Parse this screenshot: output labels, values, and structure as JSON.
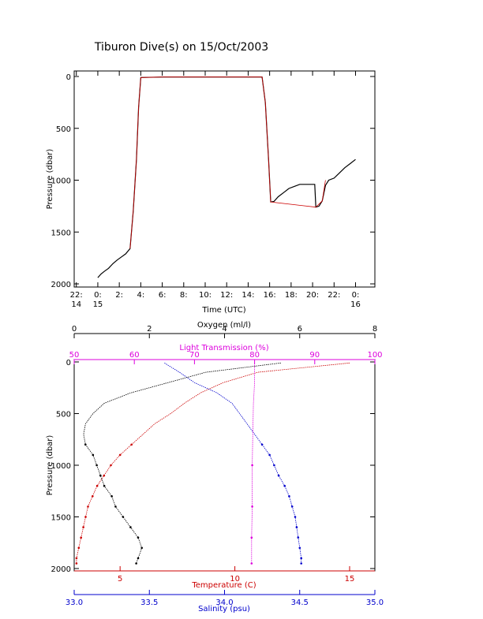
{
  "title": "Tiburon Dive(s) on 15/Oct/2003",
  "chart_data": [
    {
      "type": "line",
      "name": "time-pressure",
      "xlabel": "Time (UTC)",
      "ylabel": "Pressure (dbar)",
      "ylim": [
        2000,
        0
      ],
      "yticks": [
        "0",
        "500",
        "1000",
        "1500",
        "2000"
      ],
      "xticks": [
        {
          "h": -2,
          "label": [
            "22:",
            "14"
          ]
        },
        {
          "h": 0,
          "label": [
            "0:",
            "15"
          ]
        },
        {
          "h": 2,
          "label": [
            "2:"
          ]
        },
        {
          "h": 4,
          "label": [
            "4:"
          ]
        },
        {
          "h": 6,
          "label": [
            "6:"
          ]
        },
        {
          "h": 8,
          "label": [
            "8:"
          ]
        },
        {
          "h": 10,
          "label": [
            "10:"
          ]
        },
        {
          "h": 12,
          "label": [
            "12:"
          ]
        },
        {
          "h": 14,
          "label": [
            "14:"
          ]
        },
        {
          "h": 16,
          "label": [
            "16:"
          ]
        },
        {
          "h": 18,
          "label": [
            "18:"
          ]
        },
        {
          "h": 20,
          "label": [
            "20:"
          ]
        },
        {
          "h": 22,
          "label": [
            "22:"
          ]
        },
        {
          "h": 24,
          "label": [
            "0:",
            "16"
          ]
        }
      ],
      "xlim": [
        -2.2,
        25.8
      ],
      "series": [
        {
          "color": "#000000",
          "points": [
            [
              0,
              1940
            ],
            [
              0.3,
              1905
            ],
            [
              0.6,
              1880
            ],
            [
              1.0,
              1850
            ],
            [
              1.4,
              1805
            ],
            [
              1.8,
              1770
            ],
            [
              2.2,
              1740
            ],
            [
              2.6,
              1710
            ],
            [
              3.0,
              1660
            ],
            [
              3.3,
              1300
            ],
            [
              3.6,
              800
            ],
            [
              3.8,
              300
            ],
            [
              4.0,
              10
            ],
            [
              6,
              5
            ],
            [
              10,
              5
            ],
            [
              14,
              5
            ],
            [
              15.3,
              5
            ],
            [
              15.6,
              250
            ],
            [
              15.9,
              800
            ],
            [
              16.1,
              1210
            ],
            [
              16.4,
              1205
            ],
            [
              16.8,
              1160
            ],
            [
              17.3,
              1120
            ],
            [
              17.8,
              1080
            ],
            [
              18.3,
              1060
            ],
            [
              18.8,
              1040
            ],
            [
              19.5,
              1040
            ],
            [
              20.2,
              1040
            ],
            [
              20.3,
              1260
            ],
            [
              20.6,
              1250
            ],
            [
              20.9,
              1200
            ],
            [
              21.2,
              1050
            ],
            [
              21.5,
              1000
            ],
            [
              22,
              980
            ],
            [
              22.5,
              930
            ],
            [
              23,
              880
            ],
            [
              23.5,
              840
            ],
            [
              24,
              800
            ]
          ]
        },
        {
          "color": "#cc0000",
          "points": [
            [
              3.0,
              1660
            ],
            [
              3.3,
              1300
            ],
            [
              3.6,
              800
            ],
            [
              3.8,
              300
            ],
            [
              4.0,
              10
            ],
            [
              6,
              5
            ],
            [
              10,
              5
            ],
            [
              14,
              5
            ],
            [
              15.3,
              5
            ],
            [
              15.6,
              250
            ],
            [
              15.9,
              800
            ],
            [
              16.1,
              1210
            ],
            [
              20.3,
              1260
            ],
            [
              20.9,
              1200
            ],
            [
              21.2,
              1000
            ]
          ]
        }
      ]
    },
    {
      "type": "scatter",
      "name": "profiles",
      "xlabel": "Temperature (C)",
      "ylabel": "Pressure (dbar)",
      "ylim": [
        2000,
        0
      ],
      "yticks": [
        "0",
        "500",
        "1000",
        "1500",
        "2000"
      ],
      "axes": {
        "temperature": {
          "label": "Temperature (C)",
          "range": [
            3,
            16.1
          ],
          "ticks": [
            5,
            10,
            15
          ],
          "color": "#cc0000"
        },
        "salinity": {
          "label": "Salinity (psu)",
          "range": [
            33.0,
            35.0
          ],
          "ticks": [
            "33.0",
            "33.5",
            "34.0",
            "34.5",
            "35.0"
          ],
          "color": "#0000cc"
        },
        "oxygen": {
          "label": "Oxygen (ml/l)",
          "range": [
            0,
            8
          ],
          "ticks": [
            0,
            2,
            4,
            6,
            8
          ],
          "color": "#000000"
        },
        "light_transmission": {
          "label": "Light Transmission (%)",
          "range": [
            50,
            100
          ],
          "ticks": [
            50,
            60,
            70,
            80,
            90,
            100
          ],
          "color": "#dd00dd"
        }
      },
      "series": [
        {
          "axis": "temperature",
          "color": "#cc0000",
          "profile": [
            [
              15.0,
              10
            ],
            [
              11,
              100
            ],
            [
              9.5,
              200
            ],
            [
              8.5,
              300
            ],
            [
              7.8,
              400
            ],
            [
              7.2,
              500
            ],
            [
              6.5,
              600
            ],
            [
              6.0,
              700
            ],
            [
              5.5,
              800
            ],
            [
              5.0,
              900
            ],
            [
              4.6,
              1000
            ],
            [
              4.3,
              1100
            ],
            [
              4.0,
              1200
            ],
            [
              3.8,
              1300
            ],
            [
              3.6,
              1400
            ],
            [
              3.5,
              1500
            ],
            [
              3.4,
              1600
            ],
            [
              3.3,
              1700
            ],
            [
              3.2,
              1800
            ],
            [
              3.1,
              1900
            ],
            [
              3.1,
              1950
            ]
          ]
        },
        {
          "axis": "salinity",
          "color": "#0000cc",
          "profile": [
            [
              33.6,
              10
            ],
            [
              33.7,
              100
            ],
            [
              33.8,
              200
            ],
            [
              33.95,
              300
            ],
            [
              34.05,
              400
            ],
            [
              34.1,
              500
            ],
            [
              34.15,
              600
            ],
            [
              34.2,
              700
            ],
            [
              34.25,
              800
            ],
            [
              34.3,
              900
            ],
            [
              34.33,
              1000
            ],
            [
              34.36,
              1100
            ],
            [
              34.4,
              1200
            ],
            [
              34.43,
              1300
            ],
            [
              34.45,
              1400
            ],
            [
              34.47,
              1500
            ],
            [
              34.48,
              1600
            ],
            [
              34.49,
              1700
            ],
            [
              34.5,
              1800
            ],
            [
              34.51,
              1900
            ],
            [
              34.51,
              1950
            ]
          ]
        },
        {
          "axis": "oxygen",
          "color": "#000000",
          "profile": [
            [
              5.5,
              10
            ],
            [
              3.5,
              100
            ],
            [
              2.5,
              200
            ],
            [
              1.5,
              300
            ],
            [
              0.8,
              400
            ],
            [
              0.5,
              500
            ],
            [
              0.3,
              600
            ],
            [
              0.25,
              700
            ],
            [
              0.3,
              800
            ],
            [
              0.5,
              900
            ],
            [
              0.6,
              1000
            ],
            [
              0.7,
              1100
            ],
            [
              0.8,
              1200
            ],
            [
              1.0,
              1300
            ],
            [
              1.1,
              1400
            ],
            [
              1.3,
              1500
            ],
            [
              1.5,
              1600
            ],
            [
              1.7,
              1700
            ],
            [
              1.8,
              1800
            ],
            [
              1.7,
              1900
            ],
            [
              1.65,
              1950
            ]
          ]
        },
        {
          "axis": "light_transmission",
          "color": "#dd00dd",
          "profile": [
            [
              80,
              10
            ],
            [
              80,
              200
            ],
            [
              79.8,
              400
            ],
            [
              79.7,
              700
            ],
            [
              79.6,
              1000
            ],
            [
              79.6,
              1400
            ],
            [
              79.5,
              1700
            ],
            [
              79.5,
              1950
            ]
          ]
        }
      ]
    }
  ]
}
